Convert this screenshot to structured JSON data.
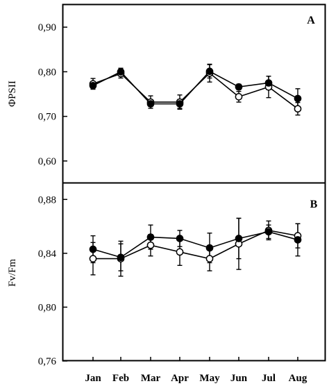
{
  "chart_data": [
    {
      "type": "line",
      "panel_label": "A",
      "ylabel": "ΦPSII",
      "ylim": [
        0.55,
        0.95
      ],
      "y_ticks": [
        {
          "value": 0.6,
          "label": "0,60"
        },
        {
          "value": 0.7,
          "label": "0,70"
        },
        {
          "value": 0.8,
          "label": "0,80"
        },
        {
          "value": 0.9,
          "label": "0,90"
        }
      ],
      "categories": [
        "Jan",
        "Feb",
        "Mar",
        "Apr",
        "May",
        "Jun",
        "Jul",
        "Aug"
      ],
      "series": [
        {
          "marker": "filled",
          "color": "#000000",
          "values": [
            0.769,
            0.8,
            0.728,
            0.728,
            0.801,
            0.766,
            0.775,
            0.74
          ],
          "errors": [
            0.008,
            0.008,
            0.006,
            0.01,
            0.015,
            0.006,
            0.015,
            0.022
          ]
        },
        {
          "marker": "open",
          "color": "#000000",
          "values": [
            0.773,
            0.796,
            0.732,
            0.732,
            0.797,
            0.744,
            0.766,
            0.717
          ],
          "errors": [
            0.012,
            0.01,
            0.014,
            0.016,
            0.02,
            0.012,
            0.024,
            0.014
          ]
        }
      ]
    },
    {
      "type": "line",
      "panel_label": "B",
      "ylabel": "Fv/Fm",
      "ylim": [
        0.76,
        0.892
      ],
      "y_ticks": [
        {
          "value": 0.76,
          "label": "0,76"
        },
        {
          "value": 0.8,
          "label": "0,80"
        },
        {
          "value": 0.84,
          "label": "0,84"
        },
        {
          "value": 0.88,
          "label": "0,88"
        }
      ],
      "categories": [
        "Jan",
        "Feb",
        "Mar",
        "Apr",
        "May",
        "Jun",
        "Jul",
        "Aug"
      ],
      "series": [
        {
          "marker": "filled",
          "color": "#000000",
          "values": [
            0.843,
            0.837,
            0.852,
            0.851,
            0.844,
            0.851,
            0.856,
            0.85
          ],
          "errors": [
            0.01,
            0.01,
            0.009,
            0.006,
            0.011,
            0.015,
            0.005,
            0.012
          ]
        },
        {
          "marker": "open",
          "color": "#000000",
          "values": [
            0.836,
            0.836,
            0.846,
            0.841,
            0.836,
            0.847,
            0.857,
            0.853
          ],
          "errors": [
            0.012,
            0.013,
            0.008,
            0.01,
            0.009,
            0.019,
            0.007,
            0.009
          ]
        }
      ]
    }
  ]
}
